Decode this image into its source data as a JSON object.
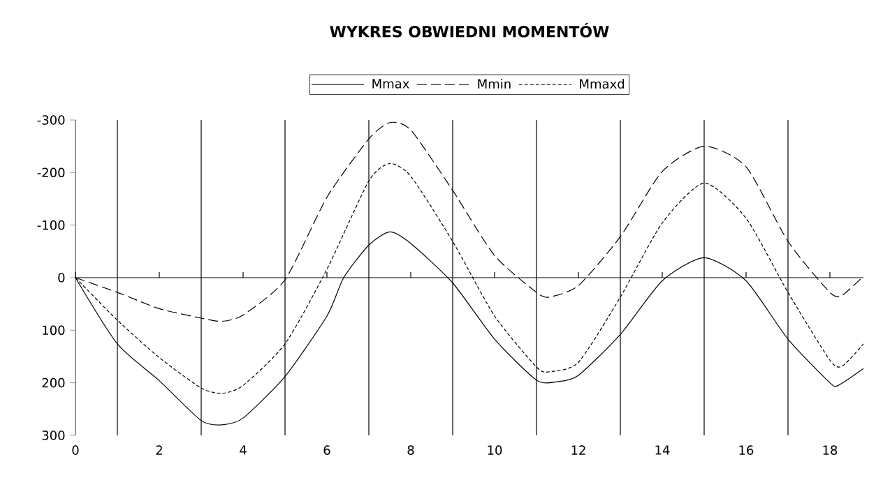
{
  "chart_data": {
    "type": "line",
    "title": "WYKRES OBWIEDNI MOMENTÓW",
    "x": [
      0,
      1,
      2,
      3,
      3.5,
      4,
      5,
      6,
      7,
      7.5,
      8,
      9,
      10,
      11,
      11.3,
      12,
      13,
      14,
      15,
      16,
      17,
      18,
      18.3,
      18.8
    ],
    "series": [
      {
        "name": "Mmax",
        "color": "#000000",
        "line_style": "solid",
        "x": [
          0,
          1,
          2,
          3,
          3.5,
          4,
          5,
          6,
          6.4,
          7,
          7.5,
          8,
          9,
          10,
          11,
          11.5,
          12,
          13,
          14,
          15,
          16,
          17,
          18,
          18.2,
          18.8
        ],
        "values": [
          0,
          126,
          196,
          272,
          280,
          267,
          188,
          73,
          0,
          -62,
          -87,
          -65,
          10,
          117,
          195,
          198,
          186,
          108,
          6,
          -38,
          6,
          117,
          200,
          205,
          173
        ]
      },
      {
        "name": "Mmin",
        "color": "#000000",
        "line_style": "dashed",
        "values": [
          0,
          28,
          59,
          77,
          83,
          71,
          4,
          -153,
          -264,
          -295,
          -281,
          -166,
          -42,
          28,
          37,
          15,
          -78,
          -202,
          -250,
          -211,
          -69,
          28,
          33,
          -3
        ]
      },
      {
        "name": "Mmaxd",
        "color": "#000000",
        "line_style": "dotted",
        "values": [
          0,
          81,
          152,
          210,
          220,
          205,
          126,
          -16,
          -184,
          -217,
          -193,
          -69,
          73,
          170,
          179,
          161,
          37,
          -104,
          -180,
          -113,
          28,
          157,
          168,
          126
        ]
      }
    ],
    "xlim": [
      0,
      18.8
    ],
    "ylim": [
      300,
      -300
    ],
    "xticks": [
      0,
      2,
      4,
      6,
      8,
      10,
      12,
      14,
      16,
      18
    ],
    "yticks": [
      -300,
      -200,
      -100,
      0,
      100,
      200,
      300
    ],
    "ref_lines": [
      {
        "axis": "y",
        "value": 0
      },
      {
        "axis": "x",
        "value": 1
      },
      {
        "axis": "x",
        "value": 3
      },
      {
        "axis": "x",
        "value": 5
      },
      {
        "axis": "x",
        "value": 7
      },
      {
        "axis": "x",
        "value": 9
      },
      {
        "axis": "x",
        "value": 11
      },
      {
        "axis": "x",
        "value": 13
      },
      {
        "axis": "x",
        "value": 15
      },
      {
        "axis": "x",
        "value": 17
      }
    ],
    "legend": "top",
    "grid": false,
    "marker": "none"
  }
}
